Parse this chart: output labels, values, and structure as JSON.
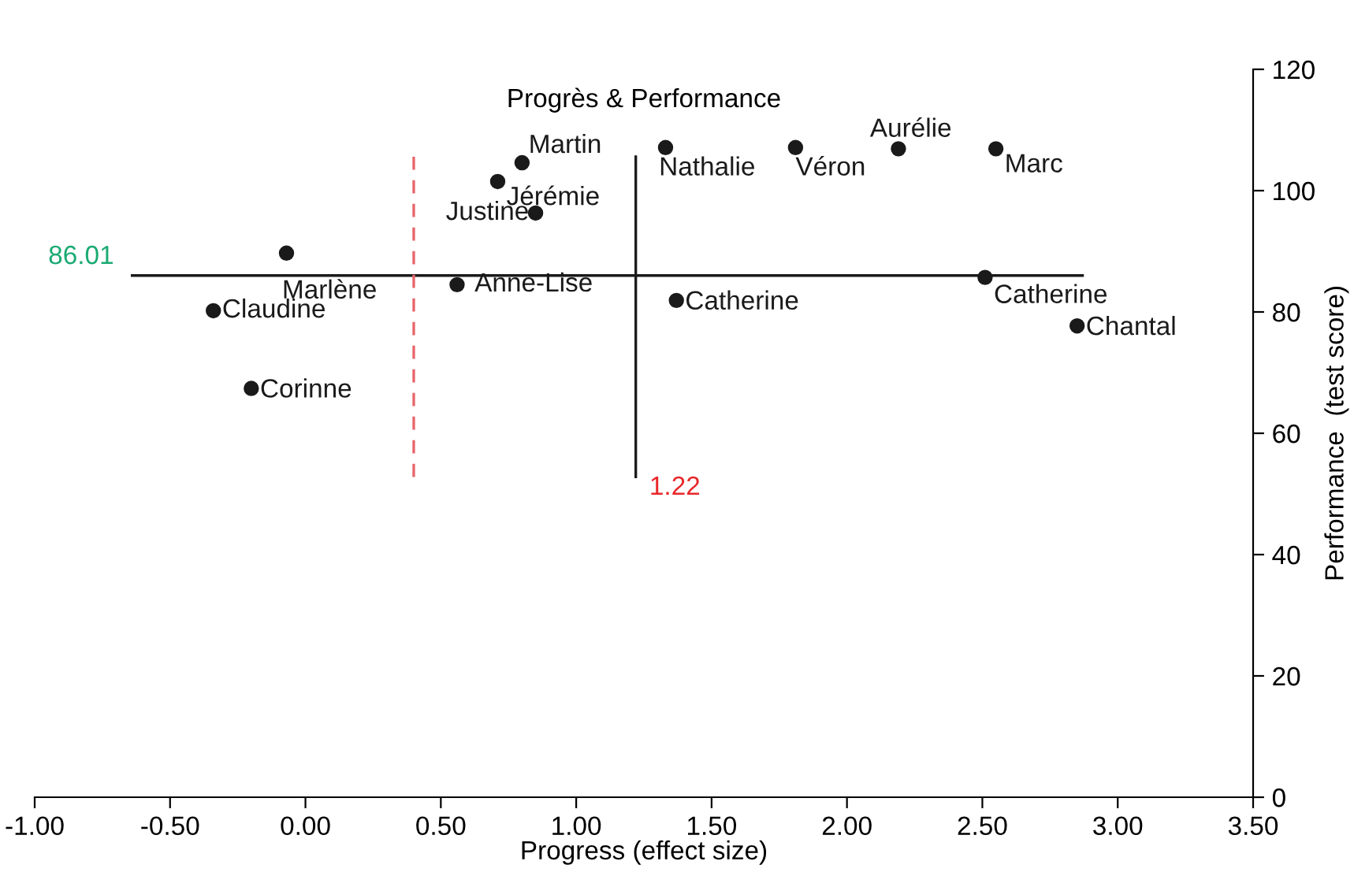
{
  "chart_data": {
    "type": "scatter",
    "title": "Progrès & Performance",
    "xlabel": "Progress (effect size)",
    "ylabel": "Performance  (test score)",
    "series": [
      {
        "color": "#1a1a1a",
        "x": [
          0.8,
          0.71,
          0.85,
          -0.07,
          -0.34,
          -0.2,
          0.56,
          1.33,
          1.37,
          1.81,
          2.19,
          2.55,
          2.51,
          2.85
        ],
        "values": [
          104.6,
          101.5,
          96.3,
          89.7,
          80.2,
          67.4,
          84.5,
          107.1,
          81.9,
          107.1,
          106.9,
          106.9,
          85.7,
          77.7
        ]
      }
    ],
    "annotations": [
      {
        "text": "Martin",
        "x": 0.8,
        "y": 104.6
      },
      {
        "text": "Jérémie",
        "x": 0.71,
        "y": 101.5
      },
      {
        "text": "Justine",
        "x": 0.85,
        "y": 96.3
      },
      {
        "text": "Marlène",
        "x": -0.07,
        "y": 89.7
      },
      {
        "text": "Claudine",
        "x": -0.34,
        "y": 80.2
      },
      {
        "text": "Corinne",
        "x": -0.2,
        "y": 67.4
      },
      {
        "text": "Anne-Lise",
        "x": 0.56,
        "y": 84.5
      },
      {
        "text": "Nathalie",
        "x": 1.33,
        "y": 107.1
      },
      {
        "text": "Catherine",
        "x": 1.37,
        "y": 81.9
      },
      {
        "text": "Véron",
        "x": 1.81,
        "y": 107.1
      },
      {
        "text": "Aurélie",
        "x": 2.19,
        "y": 106.9
      },
      {
        "text": "Marc",
        "x": 2.55,
        "y": 106.9
      },
      {
        "text": "Catherine",
        "x": 2.51,
        "y": 85.7
      },
      {
        "text": "Chantal",
        "x": 2.85,
        "y": 77.7
      }
    ],
    "ref_lines": [
      {
        "axis": "y",
        "value": 86.01,
        "label": "86.01"
      },
      {
        "axis": "x",
        "value": 1.22,
        "label": "1.22"
      },
      {
        "axis": "x",
        "value": 0.4,
        "color": "#e8656a",
        "line_style": "dashed"
      }
    ],
    "xlim": [
      -1,
      3.5
    ],
    "ylim": [
      0,
      120
    ],
    "xticks": [
      {
        "value": -1,
        "label": "-1.00"
      },
      {
        "value": -0.5,
        "label": "-0.50"
      },
      {
        "value": 0,
        "label": "0.00"
      },
      {
        "value": 0.5,
        "label": "0.50"
      },
      {
        "value": 1,
        "label": "1.00"
      },
      {
        "value": 1.5,
        "label": "1.50"
      },
      {
        "value": 2,
        "label": "2.00"
      },
      {
        "value": 2.5,
        "label": "2.50"
      },
      {
        "value": 3,
        "label": "3.00"
      },
      {
        "value": 3.5,
        "label": "3.50"
      }
    ],
    "yticks": [
      0,
      20,
      40,
      60,
      80,
      100,
      120
    ],
    "grid": false,
    "marker": "circle"
  }
}
